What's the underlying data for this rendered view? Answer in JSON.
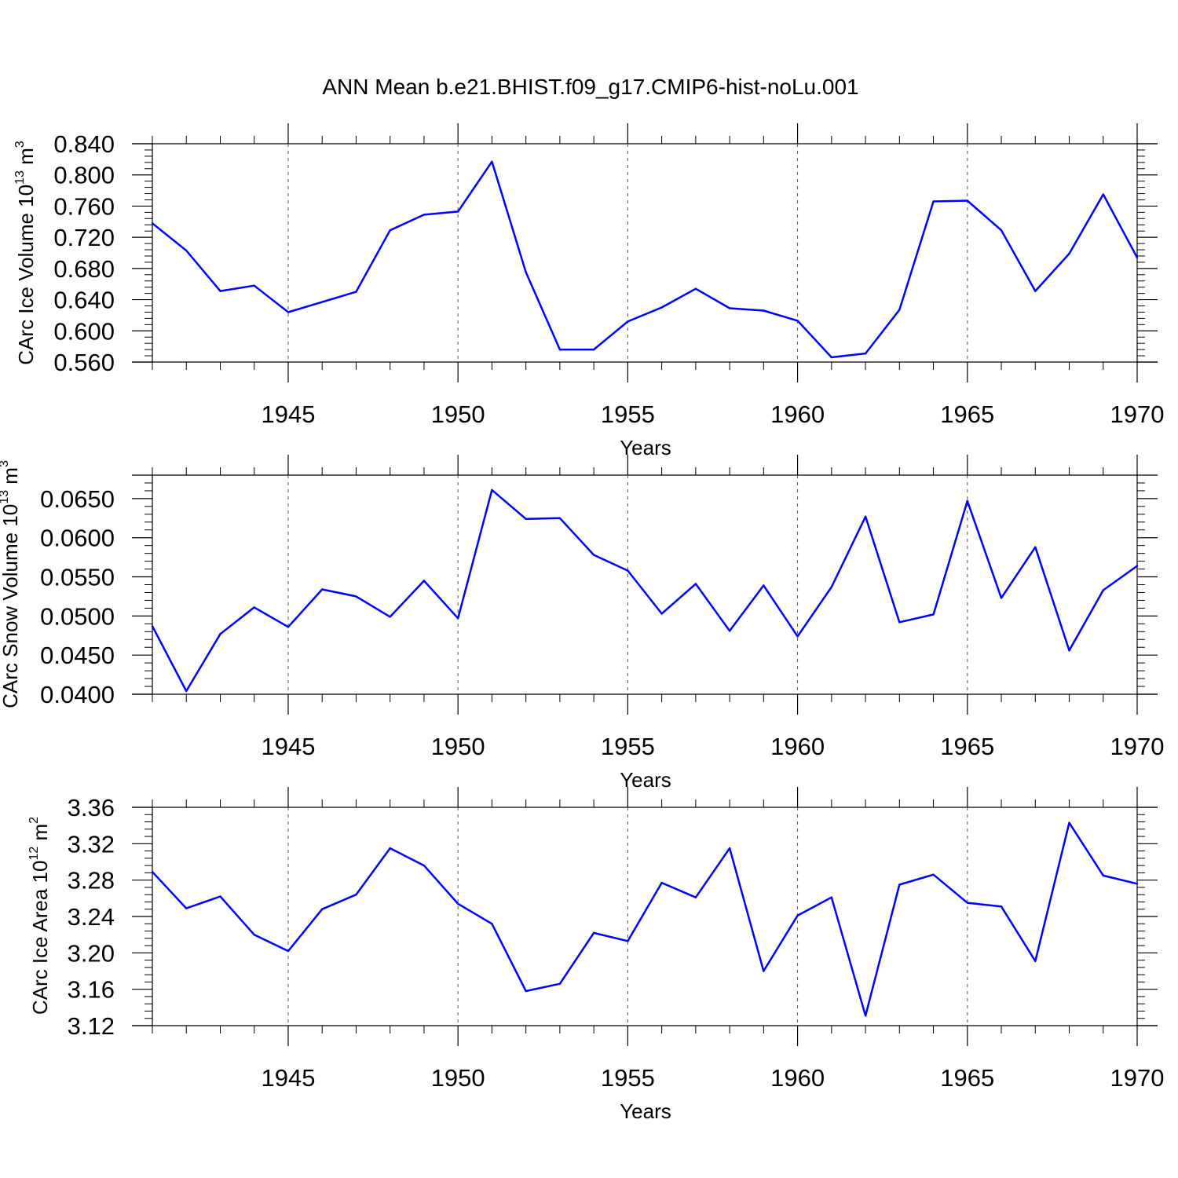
{
  "figure": {
    "title": "ANN Mean b.e21.BHIST.f09_g17.CMIP6-hist-noLu.001"
  },
  "chart_data": [
    {
      "type": "line",
      "title": "ANN Mean b.e21.BHIST.f09_g17.CMIP6-hist-noLu.001",
      "xlabel": "Years",
      "ylabel": {
        "pre": "CArc Ice Volume 10",
        "exp": "13",
        "mid": " m",
        "unit_exp": "3"
      },
      "xlim": [
        1941,
        1970
      ],
      "ylim": [
        0.56,
        0.84
      ],
      "xticks": [
        1945,
        1950,
        1955,
        1960,
        1965,
        1970
      ],
      "yticks": [
        0.56,
        0.6,
        0.64,
        0.68,
        0.72,
        0.76,
        0.8,
        0.84
      ],
      "ytick_labels": [
        "0.560",
        "0.600",
        "0.640",
        "0.680",
        "0.720",
        "0.760",
        "0.800",
        "0.840"
      ],
      "grid": "vertical dashed at major x ticks",
      "line_color": "#0000ff",
      "series": [
        {
          "name": "CArc Ice Volume",
          "x": [
            1941,
            1942,
            1943,
            1944,
            1945,
            1946,
            1947,
            1948,
            1949,
            1950,
            1951,
            1952,
            1953,
            1954,
            1955,
            1956,
            1957,
            1958,
            1959,
            1960,
            1961,
            1962,
            1963,
            1964,
            1965,
            1966,
            1967,
            1968,
            1969,
            1970
          ],
          "values": [
            0.738,
            0.703,
            0.651,
            0.658,
            0.624,
            0.637,
            0.65,
            0.729,
            0.749,
            0.753,
            0.817,
            0.675,
            0.576,
            0.576,
            0.612,
            0.63,
            0.654,
            0.629,
            0.626,
            0.613,
            0.566,
            0.571,
            0.627,
            0.766,
            0.767,
            0.729,
            0.651,
            0.699,
            0.775,
            0.694
          ]
        }
      ]
    },
    {
      "type": "line",
      "xlabel": "Years",
      "ylabel": {
        "pre": "CArc Snow Volume 10",
        "exp": "13",
        "mid": " m",
        "unit_exp": "3"
      },
      "xlim": [
        1941,
        1970
      ],
      "ylim": [
        0.04,
        0.068
      ],
      "xticks": [
        1945,
        1950,
        1955,
        1960,
        1965,
        1970
      ],
      "yticks": [
        0.04,
        0.045,
        0.05,
        0.055,
        0.06,
        0.065
      ],
      "ytick_labels": [
        "0.0400",
        "0.0450",
        "0.0500",
        "0.0550",
        "0.0600",
        "0.0650"
      ],
      "grid": "vertical dashed at major x ticks",
      "line_color": "#0000ff",
      "series": [
        {
          "name": "CArc Snow Volume",
          "x": [
            1941,
            1942,
            1943,
            1944,
            1945,
            1946,
            1947,
            1948,
            1949,
            1950,
            1951,
            1952,
            1953,
            1954,
            1955,
            1956,
            1957,
            1958,
            1959,
            1960,
            1961,
            1962,
            1963,
            1964,
            1965,
            1966,
            1967,
            1968,
            1969,
            1970
          ],
          "values": [
            0.0487,
            0.0404,
            0.0477,
            0.0511,
            0.0486,
            0.0534,
            0.0525,
            0.0499,
            0.0545,
            0.0497,
            0.0661,
            0.0624,
            0.0625,
            0.0578,
            0.0558,
            0.0503,
            0.0541,
            0.0481,
            0.0539,
            0.0474,
            0.0537,
            0.0627,
            0.0492,
            0.0502,
            0.0647,
            0.0523,
            0.0588,
            0.0456,
            0.0533,
            0.0564
          ]
        }
      ]
    },
    {
      "type": "line",
      "xlabel": "Years",
      "ylabel": {
        "pre": "CArc Ice Area 10",
        "exp": "12",
        "mid": " m",
        "unit_exp": "2"
      },
      "xlim": [
        1941,
        1970
      ],
      "ylim": [
        3.12,
        3.36
      ],
      "xticks": [
        1945,
        1950,
        1955,
        1960,
        1965,
        1970
      ],
      "yticks": [
        3.12,
        3.16,
        3.2,
        3.24,
        3.28,
        3.32,
        3.36
      ],
      "ytick_labels": [
        "3.12",
        "3.16",
        "3.20",
        "3.24",
        "3.28",
        "3.32",
        "3.36"
      ],
      "grid": "vertical dashed at major x ticks",
      "line_color": "#0000ff",
      "series": [
        {
          "name": "CArc Ice Area",
          "x": [
            1941,
            1942,
            1943,
            1944,
            1945,
            1946,
            1947,
            1948,
            1949,
            1950,
            1951,
            1952,
            1953,
            1954,
            1955,
            1956,
            1957,
            1958,
            1959,
            1960,
            1961,
            1962,
            1963,
            1964,
            1965,
            1966,
            1967,
            1968,
            1969,
            1970
          ],
          "values": [
            3.289,
            3.249,
            3.262,
            3.22,
            3.202,
            3.248,
            3.264,
            3.315,
            3.296,
            3.254,
            3.232,
            3.158,
            3.166,
            3.222,
            3.213,
            3.277,
            3.261,
            3.315,
            3.18,
            3.241,
            3.261,
            3.131,
            3.275,
            3.286,
            3.255,
            3.251,
            3.191,
            3.343,
            3.285,
            3.276
          ]
        }
      ]
    }
  ]
}
